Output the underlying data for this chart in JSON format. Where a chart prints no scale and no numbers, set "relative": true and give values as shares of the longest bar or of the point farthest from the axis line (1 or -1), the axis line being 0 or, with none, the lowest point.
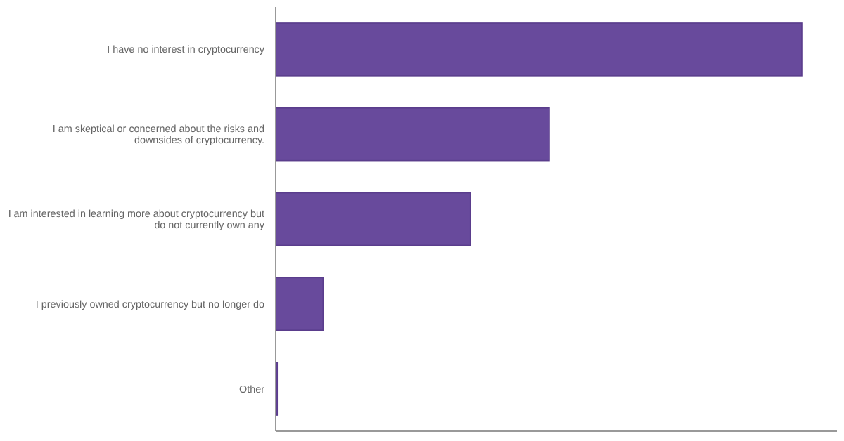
{
  "chart_data": {
    "type": "bar",
    "orientation": "horizontal",
    "relative": true,
    "categories": [
      "I have no interest in cryptocurrency",
      "I am skeptical or concerned about the risks and downsides of cryptocurrency.",
      "I am interested in learning more about cryptocurrency but do not currently own any",
      "I previously owned cryptocurrency but no longer do",
      "Other"
    ],
    "values": [
      1,
      0.52,
      0.37,
      0.09,
      0.003
    ],
    "color": "#684a9c"
  }
}
